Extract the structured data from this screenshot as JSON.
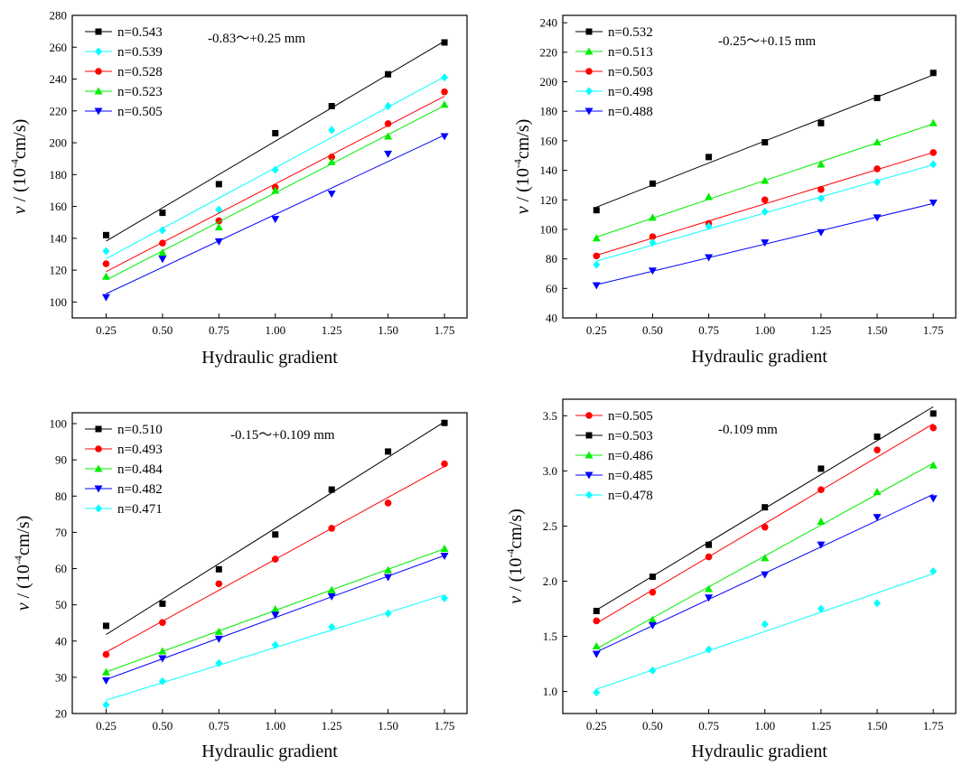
{
  "chart_data": [
    {
      "type": "scatter",
      "annotation": "-0.83～+0.25 mm",
      "xlabel": "Hydraulic gradient",
      "ylabel_var": "v",
      "ylabel_unit": "/ (10",
      "ylabel_exp": "-4",
      "ylabel_tail": "cm/s)",
      "xlim": [
        0.1,
        1.85
      ],
      "ylim": [
        90,
        280
      ],
      "xticks": [
        "0.25",
        "0.50",
        "0.75",
        "1.00",
        "1.25",
        "1.50",
        "1.75"
      ],
      "yticks": [
        "100",
        "120",
        "140",
        "160",
        "180",
        "200",
        "220",
        "240",
        "260",
        "280"
      ],
      "legend_position": "top-left",
      "x": [
        0.25,
        0.5,
        0.75,
        1.0,
        1.25,
        1.5,
        1.75
      ],
      "series": [
        {
          "name": "n=0.543",
          "color": "#000000",
          "marker": "square",
          "values": [
            142,
            156,
            174,
            206,
            223,
            243,
            263
          ]
        },
        {
          "name": "n=0.539",
          "color": "#00ffff",
          "marker": "diamond",
          "values": [
            132,
            145,
            158,
            183,
            208,
            223,
            241
          ]
        },
        {
          "name": "n=0.528",
          "color": "#ff0000",
          "marker": "circle",
          "values": [
            124,
            137,
            151,
            172,
            191,
            212,
            232
          ]
        },
        {
          "name": "n=0.523",
          "color": "#00ee00",
          "marker": "triangle-up",
          "values": [
            116,
            131,
            147,
            170,
            188,
            204,
            224
          ]
        },
        {
          "name": "n=0.505",
          "color": "#0000ff",
          "marker": "triangle-down",
          "values": [
            103,
            127,
            138,
            152,
            168,
            193,
            204
          ]
        }
      ]
    },
    {
      "type": "scatter",
      "annotation": "-0.25～+0.15 mm",
      "xlabel": "Hydraulic gradient",
      "ylabel_var": "v",
      "ylabel_unit": "/ (10",
      "ylabel_exp": "-4",
      "ylabel_tail": "cm/s)",
      "xlim": [
        0.1,
        1.85
      ],
      "ylim": [
        40,
        245
      ],
      "xticks": [
        "0.25",
        "0.50",
        "0.75",
        "1.00",
        "1.25",
        "1.50",
        "1.75"
      ],
      "yticks": [
        "40",
        "60",
        "80",
        "100",
        "120",
        "140",
        "160",
        "180",
        "200",
        "220",
        "240"
      ],
      "legend_position": "top-left",
      "x": [
        0.25,
        0.5,
        0.75,
        1.0,
        1.25,
        1.5,
        1.75
      ],
      "series": [
        {
          "name": "n=0.532",
          "color": "#000000",
          "marker": "square",
          "values": [
            113,
            131,
            149,
            159,
            172,
            189,
            206
          ]
        },
        {
          "name": "n=0.513",
          "color": "#00ee00",
          "marker": "triangle-up",
          "values": [
            94,
            108,
            122,
            133,
            144,
            159,
            172
          ]
        },
        {
          "name": "n=0.503",
          "color": "#ff0000",
          "marker": "circle",
          "values": [
            82,
            95,
            104,
            120,
            127,
            141,
            152
          ]
        },
        {
          "name": "n=0.498",
          "color": "#00ffff",
          "marker": "diamond",
          "values": [
            76,
            91,
            102,
            112,
            121,
            132,
            144
          ]
        },
        {
          "name": "n=0.488",
          "color": "#0000ff",
          "marker": "triangle-down",
          "values": [
            62,
            72,
            81,
            91,
            98,
            108,
            118
          ]
        }
      ]
    },
    {
      "type": "scatter",
      "annotation": "-0.15～+0.109 mm",
      "xlabel": "Hydraulic gradient",
      "ylabel_var": "v",
      "ylabel_unit": "/ (10",
      "ylabel_exp": "-4",
      "ylabel_tail": "cm/s)",
      "xlim": [
        0.1,
        1.85
      ],
      "ylim": [
        20,
        103
      ],
      "xticks": [
        "0.25",
        "0.50",
        "0.75",
        "1.00",
        "1.25",
        "1.50",
        "1.75"
      ],
      "yticks": [
        "20",
        "30",
        "40",
        "50",
        "60",
        "70",
        "80",
        "90",
        "100"
      ],
      "legend_position": "top-left",
      "x": [
        0.25,
        0.5,
        0.75,
        1.0,
        1.25,
        1.5,
        1.75
      ],
      "series": [
        {
          "name": "n=0.510",
          "color": "#000000",
          "marker": "square",
          "values": [
            44.2,
            50.3,
            59.8,
            69.4,
            81.8,
            92.3,
            100.2
          ]
        },
        {
          "name": "n=0.493",
          "color": "#ff0000",
          "marker": "circle",
          "values": [
            36.3,
            45.1,
            55.8,
            62.6,
            71.1,
            78.1,
            88.9
          ]
        },
        {
          "name": "n=0.484",
          "color": "#00ee00",
          "marker": "triangle-up",
          "values": [
            31.4,
            37.2,
            42.6,
            48.8,
            54.1,
            59.6,
            65.5
          ]
        },
        {
          "name": "n=0.482",
          "color": "#0000ff",
          "marker": "triangle-down",
          "values": [
            29.1,
            35.2,
            40.6,
            47.2,
            52.3,
            57.6,
            63.5
          ]
        },
        {
          "name": "n=0.471",
          "color": "#00ffff",
          "marker": "diamond",
          "values": [
            22.4,
            28.9,
            33.9,
            38.9,
            43.9,
            47.6,
            51.8
          ]
        }
      ]
    },
    {
      "type": "scatter",
      "annotation": "-0.109 mm",
      "xlabel": "Hydraulic gradient",
      "ylabel_var": "v",
      "ylabel_unit": "/ (10",
      "ylabel_exp": "-4",
      "ylabel_tail": "cm/s)",
      "xlim": [
        0.1,
        1.85
      ],
      "ylim": [
        0.8,
        3.65
      ],
      "xticks": [
        "0.25",
        "0.50",
        "0.75",
        "1.00",
        "1.25",
        "1.50",
        "1.75"
      ],
      "yticks": [
        "1.0",
        "1.5",
        "2.0",
        "2.5",
        "3.0",
        "3.5"
      ],
      "legend_position": "top-left",
      "x": [
        0.25,
        0.5,
        0.75,
        1.0,
        1.25,
        1.5,
        1.75
      ],
      "series": [
        {
          "name": "n=0.505",
          "color": "#ff0000",
          "marker": "circle",
          "values": [
            1.64,
            1.9,
            2.22,
            2.49,
            2.83,
            3.19,
            3.39
          ]
        },
        {
          "name": "n=0.503",
          "color": "#000000",
          "marker": "square",
          "values": [
            1.73,
            2.04,
            2.33,
            2.67,
            3.02,
            3.31,
            3.52
          ]
        },
        {
          "name": "n=0.486",
          "color": "#00ee00",
          "marker": "triangle-up",
          "values": [
            1.41,
            1.65,
            1.93,
            2.21,
            2.54,
            2.81,
            3.05
          ]
        },
        {
          "name": "n=0.485",
          "color": "#0000ff",
          "marker": "triangle-down",
          "values": [
            1.34,
            1.6,
            1.85,
            2.06,
            2.33,
            2.58,
            2.75
          ]
        },
        {
          "name": "n=0.478",
          "color": "#00ffff",
          "marker": "diamond",
          "values": [
            0.99,
            1.19,
            1.38,
            1.61,
            1.75,
            1.8,
            2.09
          ]
        }
      ]
    }
  ]
}
